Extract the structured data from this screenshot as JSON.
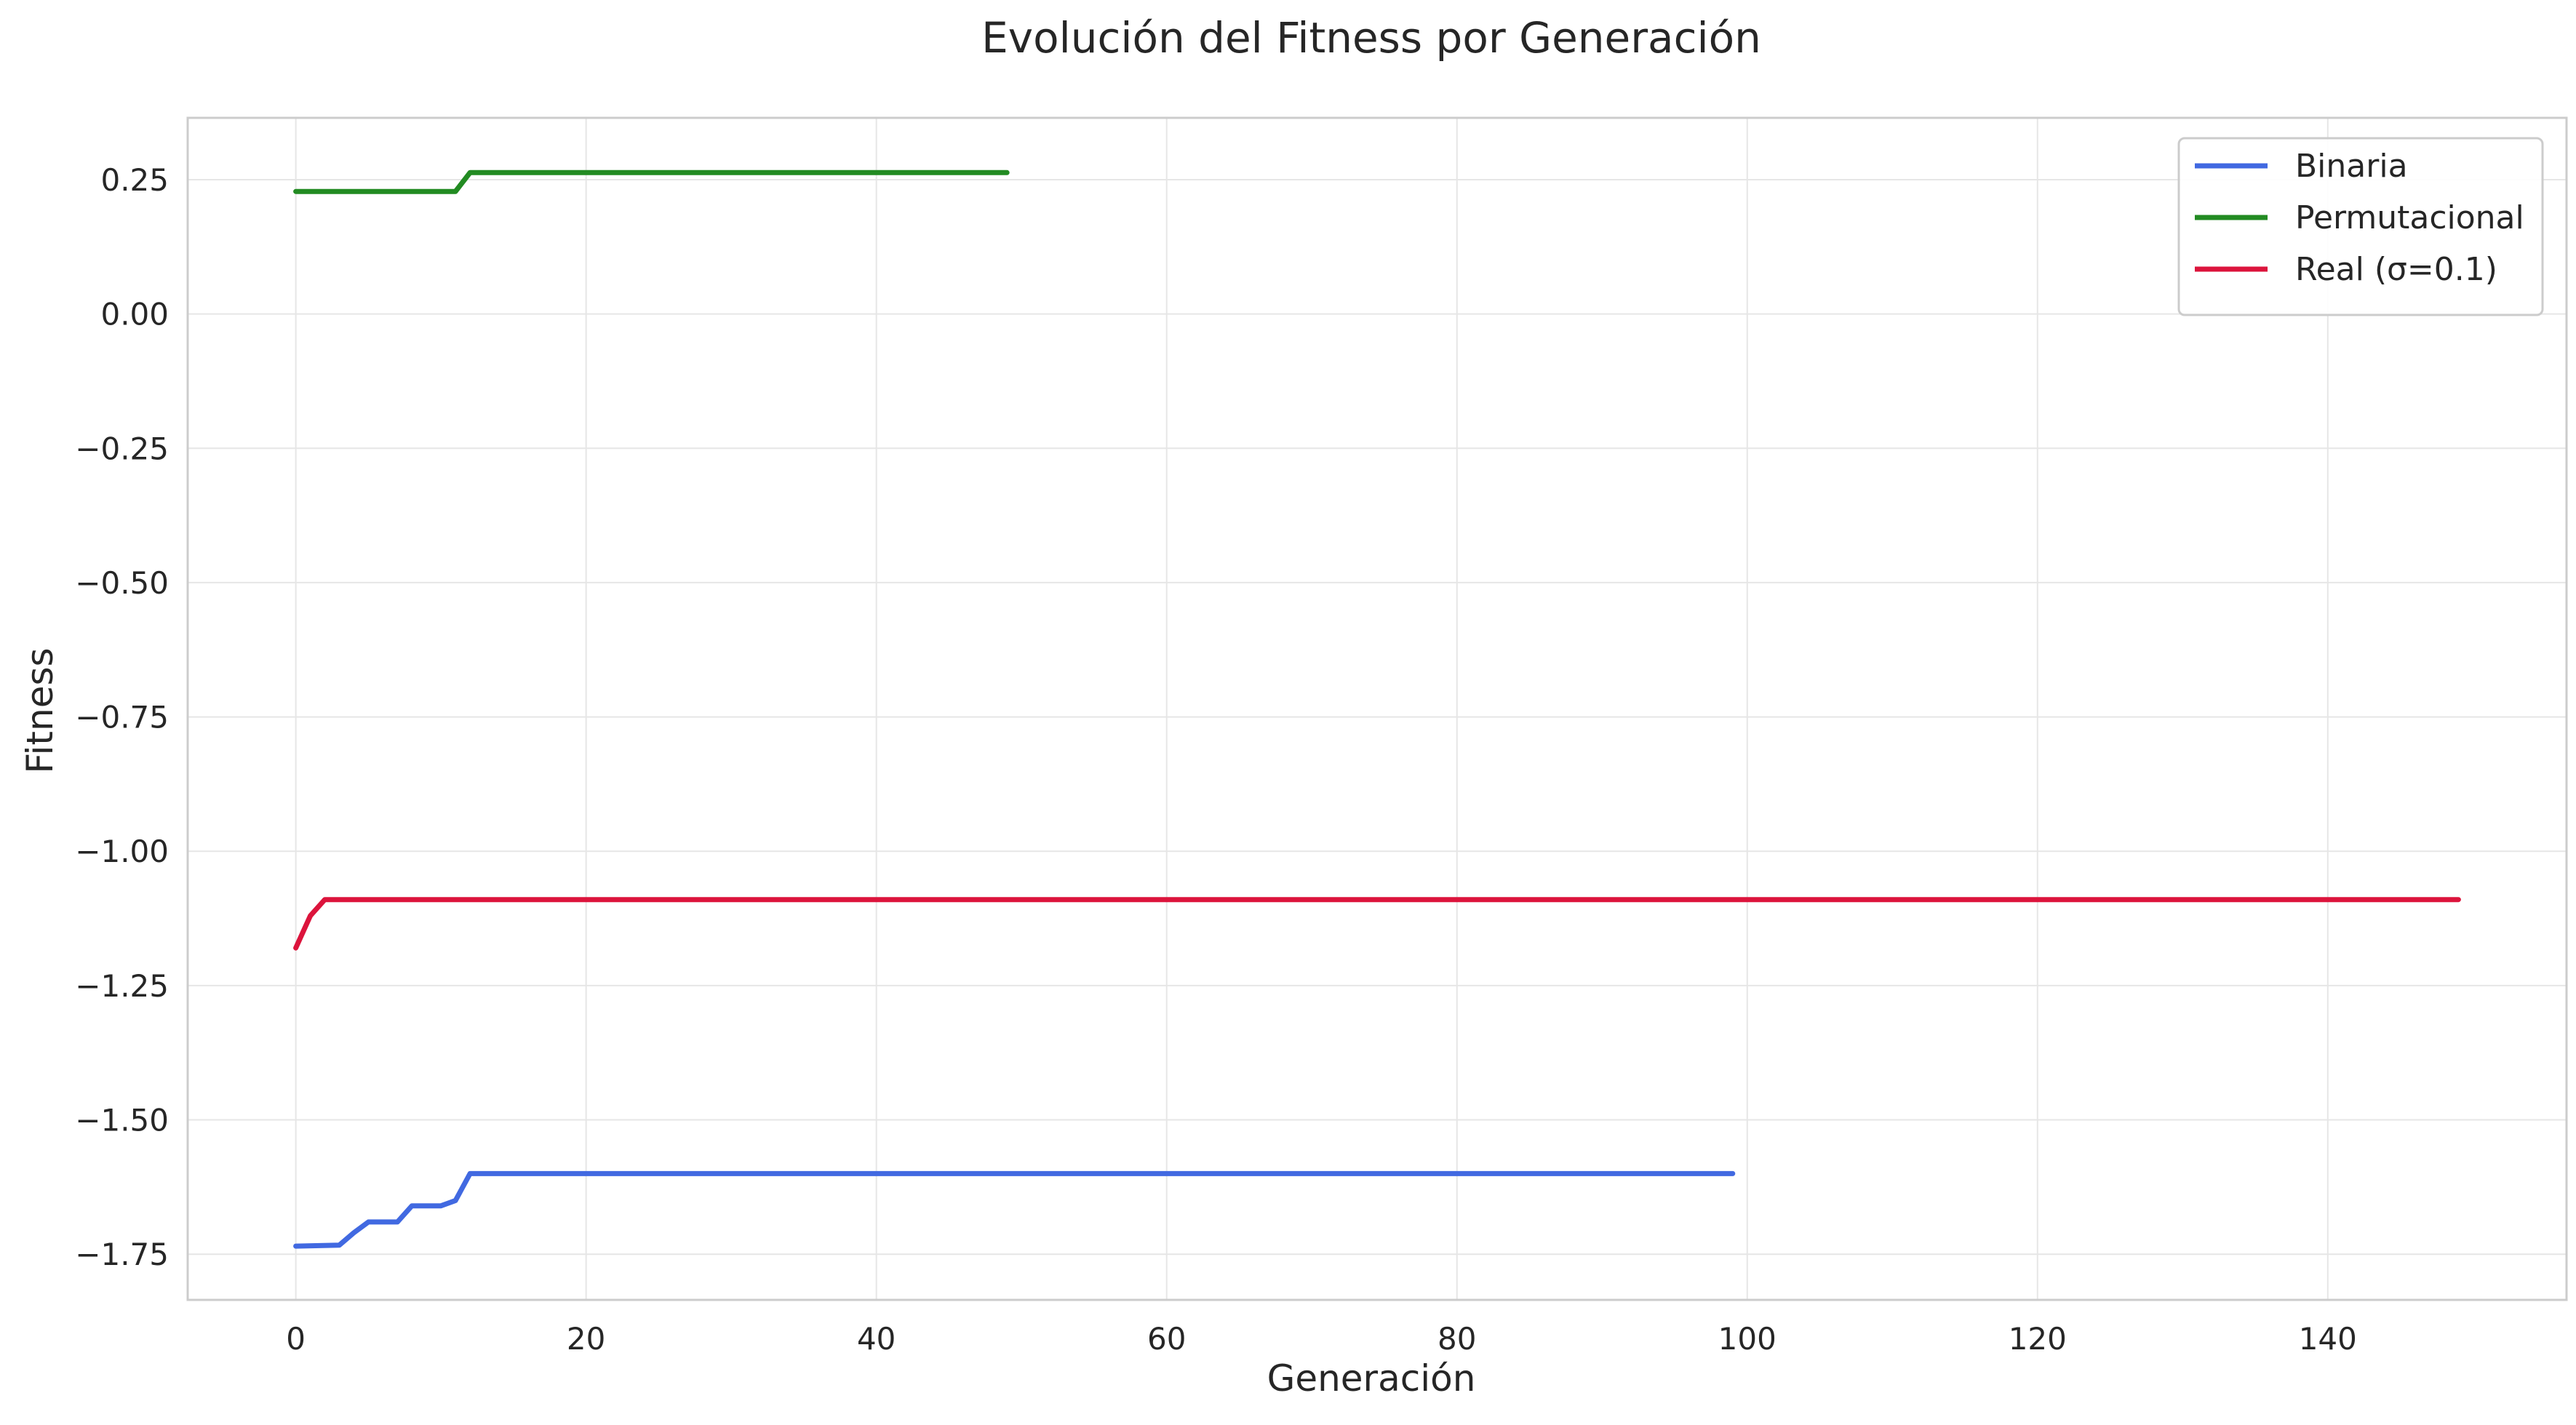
{
  "chart_data": {
    "type": "line",
    "title": "Evolución del Fitness por Generación",
    "xlabel": "Generación",
    "ylabel": "Fitness",
    "xlim": [
      -7.45,
      156.45
    ],
    "ylim": [
      -1.835,
      0.365
    ],
    "x_ticks": [
      0,
      20,
      40,
      60,
      80,
      100,
      120,
      140
    ],
    "x_tick_labels": [
      "0",
      "20",
      "40",
      "60",
      "80",
      "100",
      "120",
      "140"
    ],
    "y_ticks": [
      0.25,
      0.0,
      -0.25,
      -0.5,
      -0.75,
      -1.0,
      -1.25,
      -1.5,
      -1.75
    ],
    "y_tick_labels": [
      "0.25",
      "0.00",
      "−0.25",
      "−0.50",
      "−0.75",
      "−1.00",
      "−1.25",
      "−1.50",
      "−1.75"
    ],
    "grid": true,
    "legend_position": "top-right",
    "series": [
      {
        "name": "Binaria",
        "color": "#4169e1",
        "x_start": 0,
        "x_end": 99,
        "points": [
          [
            0,
            -1.735
          ],
          [
            3,
            -1.733
          ],
          [
            4,
            -1.71
          ],
          [
            5,
            -1.69
          ],
          [
            7,
            -1.69
          ],
          [
            8,
            -1.66
          ],
          [
            10,
            -1.66
          ],
          [
            11,
            -1.65
          ],
          [
            12,
            -1.6
          ],
          [
            99,
            -1.6
          ]
        ]
      },
      {
        "name": "Permutacional",
        "color": "#228b22",
        "x_start": 0,
        "x_end": 49,
        "points": [
          [
            0,
            0.228
          ],
          [
            11,
            0.228
          ],
          [
            12,
            0.263
          ],
          [
            49,
            0.263
          ]
        ]
      },
      {
        "name": "Real (σ=0.1)",
        "color": "#dc143c",
        "x_start": 0,
        "x_end": 149,
        "points": [
          [
            0,
            -1.18
          ],
          [
            1,
            -1.12
          ],
          [
            2,
            -1.09
          ],
          [
            149,
            -1.09
          ]
        ]
      }
    ]
  }
}
